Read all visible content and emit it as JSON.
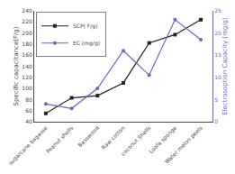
{
  "chart_data": {
    "type": "line",
    "categories": [
      "sugarcane bagasse",
      "Peanut shells",
      "Basswood",
      "Raw cotton",
      "coconut Shells",
      "Loofa sponge",
      "Water melon peels"
    ],
    "series": [
      {
        "name": "SCP( F/g)",
        "color": "#222222",
        "marker": "square",
        "values": [
          55,
          83,
          87,
          110,
          182,
          197,
          224
        ]
      },
      {
        "name": "EC (mg/g)",
        "color": "#6666cc",
        "marker": "circle",
        "axis": "y2",
        "values": [
          4.0,
          3.0,
          7.5,
          16.0,
          10.5,
          23.0,
          18.5
        ]
      }
    ],
    "ylabel": "Specific capacitance(F/g)",
    "y2label": "Electrosoption Capacity (mg/g)",
    "ylim": [
      40,
      240
    ],
    "yticks": [
      40,
      60,
      80,
      100,
      120,
      140,
      160,
      180,
      200,
      220,
      240
    ],
    "y2lim": [
      0,
      25
    ],
    "y2ticks": [
      0,
      5,
      10,
      15,
      20,
      25
    ],
    "grid": false,
    "legend": "upper left"
  }
}
